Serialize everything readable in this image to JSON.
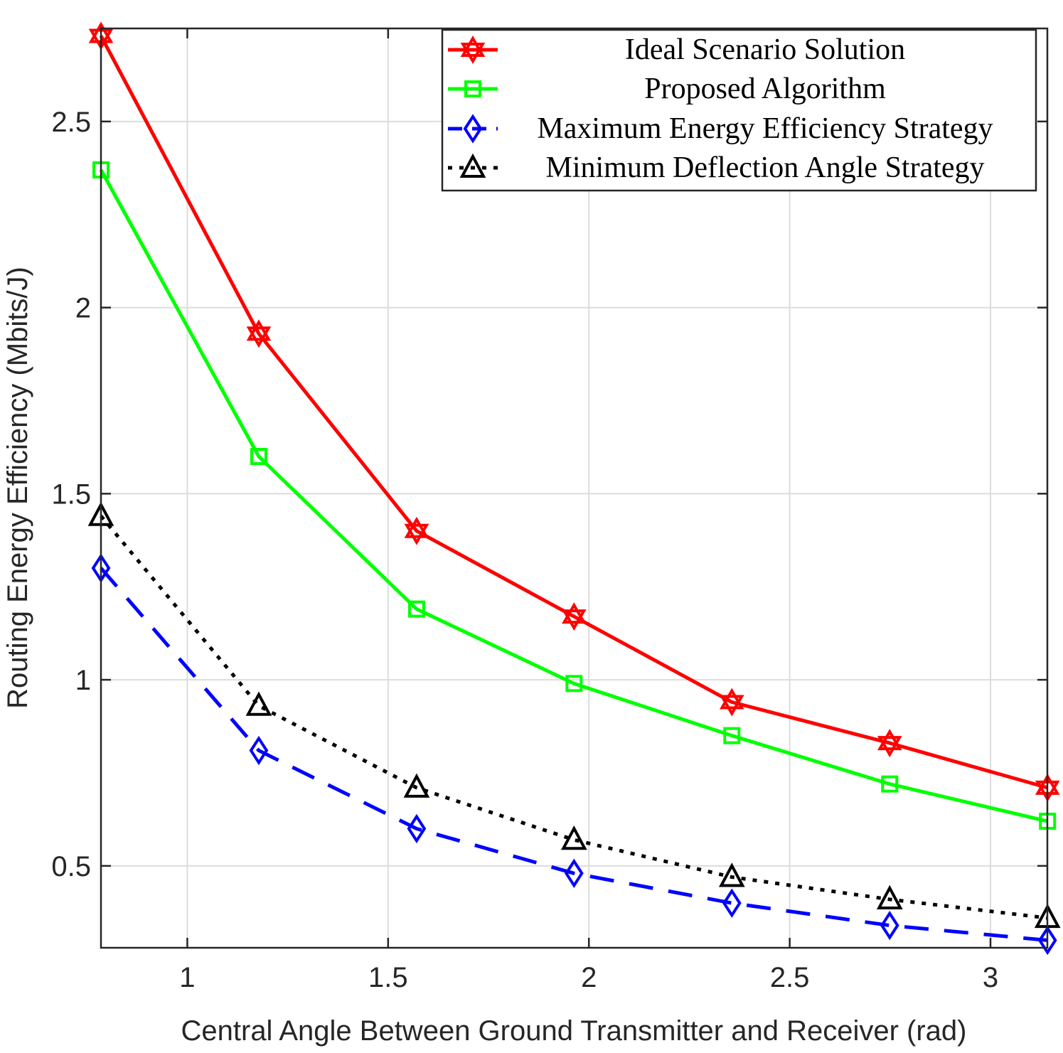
{
  "chart_data": {
    "type": "line",
    "xlabel": "Central Angle Between Ground Transmitter and Receiver (rad)",
    "ylabel": "Routing Energy Efficiency (Mbits/J)",
    "xlim": [
      0.785,
      3.1416
    ],
    "ylim": [
      0.28,
      2.75
    ],
    "xticks": [
      1,
      1.5,
      2,
      2.5,
      3
    ],
    "xtick_labels": [
      "1",
      "1.5",
      "2",
      "2.5",
      "3"
    ],
    "yticks": [
      0.5,
      1,
      1.5,
      2,
      2.5
    ],
    "ytick_labels": [
      "0.5",
      "1",
      "1.5",
      "2",
      "2.5"
    ],
    "grid": true,
    "legend_position": "top-right",
    "x": [
      0.785,
      1.178,
      1.571,
      1.963,
      2.356,
      2.749,
      3.142
    ],
    "series": [
      {
        "name": "Ideal Scenario Solution",
        "color": "#ff0000",
        "marker": "hexagram",
        "dash": "solid",
        "values": [
          2.73,
          1.93,
          1.4,
          1.17,
          0.94,
          0.83,
          0.71
        ]
      },
      {
        "name": "Proposed Algorithm",
        "color": "#00ff00",
        "marker": "square",
        "dash": "solid",
        "values": [
          2.37,
          1.6,
          1.19,
          0.99,
          0.85,
          0.72,
          0.62
        ]
      },
      {
        "name": "Maximum Energy Efficiency Strategy",
        "color": "#0000ff",
        "marker": "diamond",
        "dash": "dashed",
        "values": [
          1.3,
          0.81,
          0.6,
          0.48,
          0.4,
          0.34,
          0.3
        ]
      },
      {
        "name": "Minimum Deflection Angle Strategy",
        "color": "#000000",
        "marker": "triangle",
        "dash": "dotted",
        "values": [
          1.44,
          0.93,
          0.71,
          0.57,
          0.47,
          0.41,
          0.36
        ]
      }
    ]
  }
}
